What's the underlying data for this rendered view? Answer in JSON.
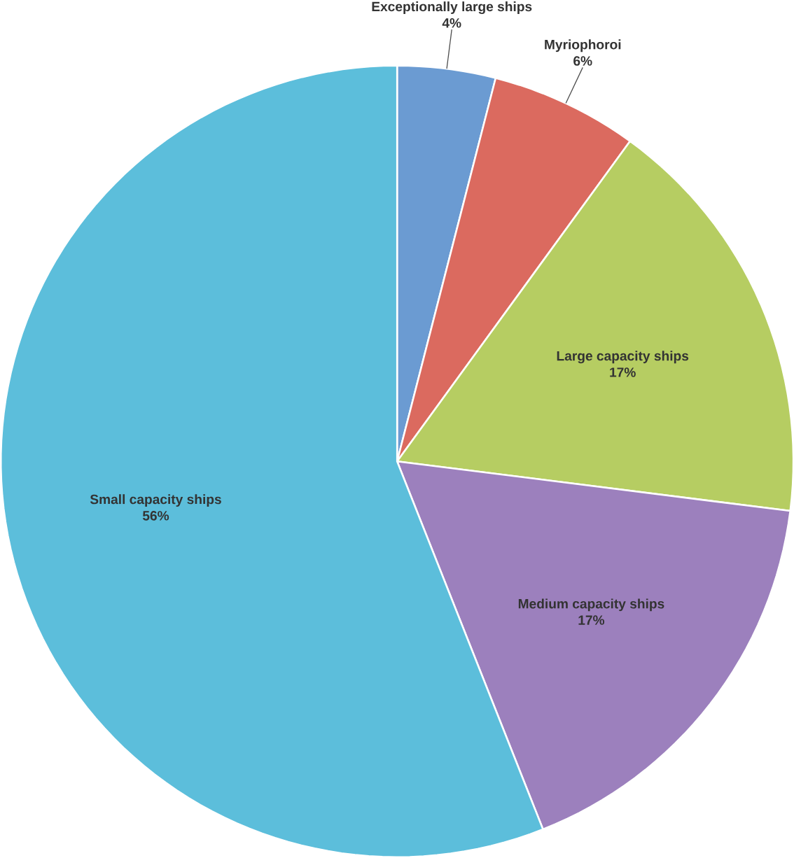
{
  "chart_data": {
    "type": "pie",
    "categories": [
      "Exceptionally large ships",
      "Myriophoroi",
      "Large capacity ships",
      "Medium capacity ships",
      "Small capacity ships"
    ],
    "values": [
      4,
      6,
      17,
      17,
      56
    ],
    "value_labels": [
      "4%",
      "6%",
      "17%",
      "17%",
      "56%"
    ],
    "colors": [
      "#6b9bd2",
      "#db6a5f",
      "#b6cd62",
      "#9c80bd",
      "#5cbedb"
    ]
  }
}
